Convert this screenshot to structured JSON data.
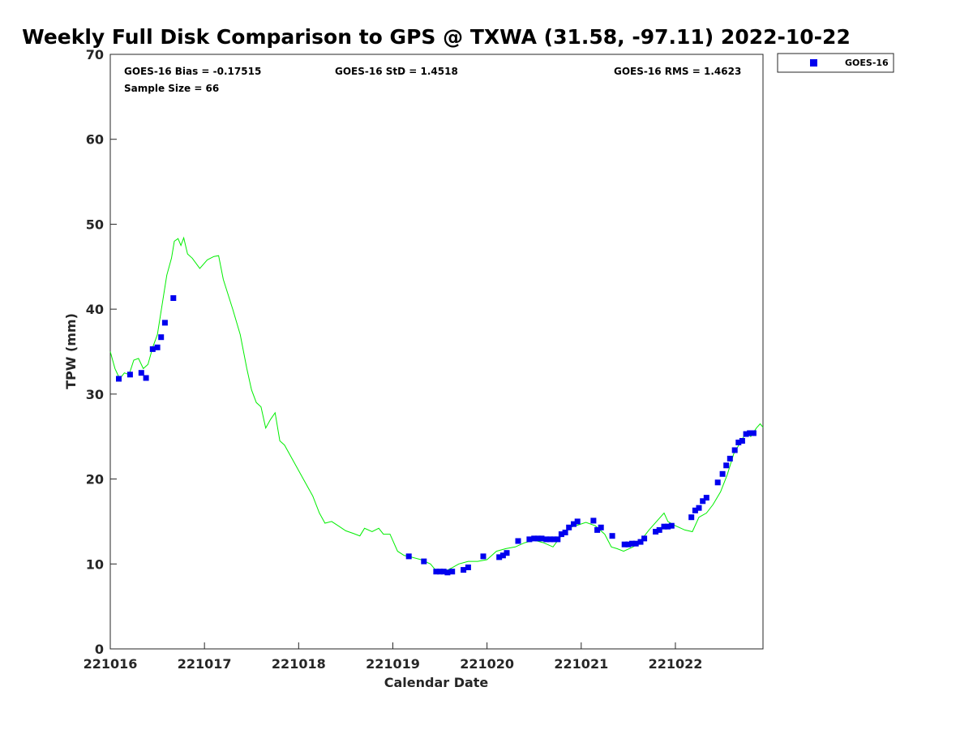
{
  "chart_data": {
    "type": "scatter",
    "title": "Weekly Full Disk Comparison to GPS @ TXWA (31.58, -97.11) 2022-10-22",
    "xlabel": "Calendar Date",
    "ylabel": "TPW (mm)",
    "xlim": [
      221016,
      221022.93
    ],
    "ylim": [
      0,
      70
    ],
    "xtick_labels": [
      "221016",
      "221017",
      "221018",
      "221019",
      "221020",
      "221021",
      "221022"
    ],
    "ytick_labels": [
      "0",
      "10",
      "20",
      "30",
      "40",
      "50",
      "60",
      "70"
    ],
    "grid": false,
    "legend_position": "top-right (outside plot)",
    "stats": {
      "bias": "GOES-16 Bias = -0.17515",
      "std": "GOES-16 StD = 1.4518",
      "rms": "GOES-16 RMS = 1.4623",
      "sample": "Sample Size = 66"
    },
    "series": [
      {
        "name": "GOES-16",
        "kind": "scatter",
        "marker": "square",
        "color": "#0000ee",
        "points": [
          [
            221016.09,
            31.8
          ],
          [
            221016.21,
            32.3
          ],
          [
            221016.33,
            32.5
          ],
          [
            221016.38,
            31.9
          ],
          [
            221016.45,
            35.3
          ],
          [
            221016.5,
            35.5
          ],
          [
            221016.54,
            36.7
          ],
          [
            221016.58,
            38.4
          ],
          [
            221016.67,
            41.3
          ],
          [
            221019.17,
            10.9
          ],
          [
            221019.33,
            10.3
          ],
          [
            221019.46,
            9.1
          ],
          [
            221019.5,
            9.1
          ],
          [
            221019.54,
            9.1
          ],
          [
            221019.58,
            9.0
          ],
          [
            221019.63,
            9.1
          ],
          [
            221019.75,
            9.3
          ],
          [
            221019.8,
            9.6
          ],
          [
            221019.96,
            10.9
          ],
          [
            221020.13,
            10.8
          ],
          [
            221020.17,
            11.0
          ],
          [
            221020.21,
            11.3
          ],
          [
            221020.33,
            12.7
          ],
          [
            221020.45,
            12.9
          ],
          [
            221020.5,
            13.0
          ],
          [
            221020.54,
            13.0
          ],
          [
            221020.58,
            13.0
          ],
          [
            221020.63,
            12.9
          ],
          [
            221020.67,
            12.9
          ],
          [
            221020.71,
            12.9
          ],
          [
            221020.75,
            12.9
          ],
          [
            221020.79,
            13.5
          ],
          [
            221020.83,
            13.7
          ],
          [
            221020.87,
            14.3
          ],
          [
            221020.92,
            14.7
          ],
          [
            221020.96,
            15.0
          ],
          [
            221021.13,
            15.1
          ],
          [
            221021.17,
            14.0
          ],
          [
            221021.21,
            14.3
          ],
          [
            221021.33,
            13.3
          ],
          [
            221021.46,
            12.3
          ],
          [
            221021.5,
            12.3
          ],
          [
            221021.54,
            12.4
          ],
          [
            221021.58,
            12.4
          ],
          [
            221021.63,
            12.6
          ],
          [
            221021.67,
            13.0
          ],
          [
            221021.79,
            13.8
          ],
          [
            221021.83,
            14.0
          ],
          [
            221021.88,
            14.4
          ],
          [
            221021.92,
            14.4
          ],
          [
            221021.96,
            14.5
          ],
          [
            221022.17,
            15.5
          ],
          [
            221022.21,
            16.3
          ],
          [
            221022.25,
            16.6
          ],
          [
            221022.29,
            17.4
          ],
          [
            221022.33,
            17.8
          ],
          [
            221022.45,
            19.6
          ],
          [
            221022.5,
            20.6
          ],
          [
            221022.54,
            21.6
          ],
          [
            221022.58,
            22.4
          ],
          [
            221022.63,
            23.4
          ],
          [
            221022.67,
            24.3
          ],
          [
            221022.71,
            24.5
          ],
          [
            221022.75,
            25.3
          ],
          [
            221022.79,
            25.4
          ],
          [
            221022.83,
            25.4
          ]
        ]
      },
      {
        "kind": "line",
        "color": "#00ee00",
        "points": [
          [
            221016.0,
            35.0
          ],
          [
            221016.05,
            33.0
          ],
          [
            221016.1,
            31.8
          ],
          [
            221016.15,
            32.5
          ],
          [
            221016.2,
            32.3
          ],
          [
            221016.25,
            34.0
          ],
          [
            221016.3,
            34.2
          ],
          [
            221016.35,
            33.0
          ],
          [
            221016.4,
            33.5
          ],
          [
            221016.45,
            35.5
          ],
          [
            221016.5,
            37.0
          ],
          [
            221016.55,
            40.5
          ],
          [
            221016.6,
            44.0
          ],
          [
            221016.65,
            46.0
          ],
          [
            221016.68,
            48.0
          ],
          [
            221016.72,
            48.3
          ],
          [
            221016.75,
            47.5
          ],
          [
            221016.78,
            48.4
          ],
          [
            221016.82,
            46.5
          ],
          [
            221016.87,
            46.0
          ],
          [
            221016.95,
            44.8
          ],
          [
            221017.03,
            45.8
          ],
          [
            221017.1,
            46.2
          ],
          [
            221017.15,
            46.3
          ],
          [
            221017.2,
            43.5
          ],
          [
            221017.3,
            40.0
          ],
          [
            221017.38,
            37.0
          ],
          [
            221017.45,
            33.0
          ],
          [
            221017.5,
            30.5
          ],
          [
            221017.55,
            29.0
          ],
          [
            221017.6,
            28.5
          ],
          [
            221017.65,
            26.0
          ],
          [
            221017.7,
            27.0
          ],
          [
            221017.75,
            27.8
          ],
          [
            221017.8,
            24.5
          ],
          [
            221017.85,
            24.0
          ],
          [
            221017.95,
            22.0
          ],
          [
            221018.05,
            20.0
          ],
          [
            221018.15,
            18.0
          ],
          [
            221018.22,
            16.0
          ],
          [
            221018.28,
            14.8
          ],
          [
            221018.35,
            15.0
          ],
          [
            221018.42,
            14.5
          ],
          [
            221018.5,
            13.9
          ],
          [
            221018.58,
            13.6
          ],
          [
            221018.65,
            13.3
          ],
          [
            221018.7,
            14.2
          ],
          [
            221018.78,
            13.8
          ],
          [
            221018.85,
            14.2
          ],
          [
            221018.9,
            13.5
          ],
          [
            221018.97,
            13.5
          ],
          [
            221019.05,
            11.5
          ],
          [
            221019.12,
            11.0
          ],
          [
            221019.2,
            10.8
          ],
          [
            221019.3,
            10.5
          ],
          [
            221019.4,
            10.0
          ],
          [
            221019.46,
            9.2
          ],
          [
            221019.55,
            9.1
          ],
          [
            221019.62,
            9.5
          ],
          [
            221019.7,
            10.0
          ],
          [
            221019.8,
            10.3
          ],
          [
            221019.9,
            10.3
          ],
          [
            221020.0,
            10.5
          ],
          [
            221020.1,
            11.5
          ],
          [
            221020.2,
            11.8
          ],
          [
            221020.3,
            12.0
          ],
          [
            221020.4,
            12.5
          ],
          [
            221020.5,
            12.8
          ],
          [
            221020.6,
            12.5
          ],
          [
            221020.7,
            12.0
          ],
          [
            221020.78,
            13.2
          ],
          [
            221020.88,
            14.3
          ],
          [
            221020.97,
            14.6
          ],
          [
            221021.05,
            14.9
          ],
          [
            221021.15,
            14.5
          ],
          [
            221021.25,
            13.5
          ],
          [
            221021.32,
            12.0
          ],
          [
            221021.38,
            11.8
          ],
          [
            221021.45,
            11.5
          ],
          [
            221021.55,
            12.0
          ],
          [
            221021.65,
            13.0
          ],
          [
            221021.72,
            14.0
          ],
          [
            221021.8,
            15.0
          ],
          [
            221021.88,
            16.0
          ],
          [
            221021.92,
            15.0
          ],
          [
            221022.0,
            14.5
          ],
          [
            221022.1,
            14.0
          ],
          [
            221022.18,
            13.8
          ],
          [
            221022.25,
            15.5
          ],
          [
            221022.33,
            16.0
          ],
          [
            221022.4,
            17.0
          ],
          [
            221022.48,
            18.5
          ],
          [
            221022.55,
            20.5
          ],
          [
            221022.62,
            23.0
          ],
          [
            221022.7,
            24.5
          ],
          [
            221022.75,
            25.5
          ],
          [
            221022.8,
            25.0
          ],
          [
            221022.86,
            26.0
          ],
          [
            221022.9,
            26.5
          ],
          [
            221022.93,
            26.1
          ]
        ]
      }
    ]
  }
}
